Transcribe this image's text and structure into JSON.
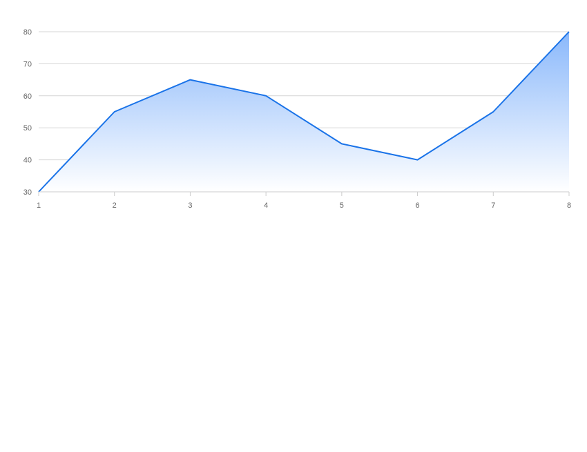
{
  "chart_data": {
    "type": "area",
    "x": [
      1,
      2,
      3,
      4,
      5,
      6,
      7,
      8
    ],
    "series": [
      {
        "values": [
          30,
          55,
          65,
          60,
          45,
          40,
          55,
          80
        ]
      }
    ],
    "xlim": [
      1,
      8
    ],
    "ylim": [
      30,
      80
    ],
    "xticks": [
      "1",
      "2",
      "3",
      "4",
      "5",
      "6",
      "7",
      "8"
    ],
    "yticks": [
      "30",
      "40",
      "50",
      "60",
      "70",
      "80"
    ],
    "grid": "horizontal",
    "legend": "none",
    "colors": {
      "line": "#1a73e8",
      "fill_top": "#8ab8fb",
      "fill_bottom": "#ffffff",
      "grid": "#d6d6d6",
      "axis": "#cccccc",
      "tick_text": "#666666"
    }
  }
}
